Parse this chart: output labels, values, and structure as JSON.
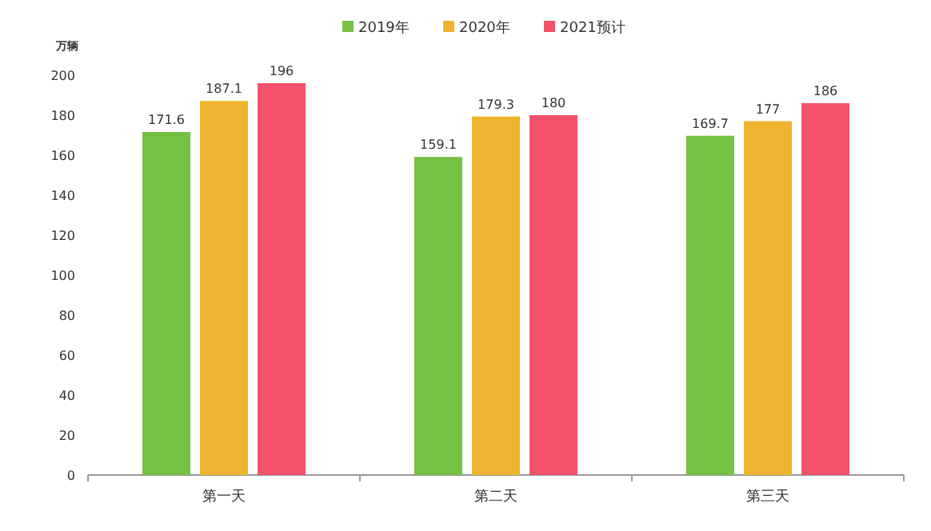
{
  "chart_data": {
    "type": "bar",
    "ylabel": "万辆",
    "categories": [
      "第一天",
      "第二天",
      "第三天"
    ],
    "series": [
      {
        "name": "2019年",
        "color": "#76c043",
        "values": [
          171.6,
          159.1,
          169.7
        ]
      },
      {
        "name": "2020年",
        "color": "#f0b330",
        "values": [
          187.1,
          179.3,
          177
        ]
      },
      {
        "name": "2021预计",
        "color": "#f2536a",
        "values": [
          196,
          180,
          186
        ]
      }
    ],
    "ylim": [
      0,
      200
    ],
    "yticks": [
      0,
      20,
      40,
      60,
      80,
      100,
      120,
      140,
      160,
      180,
      200
    ],
    "data_labels": true,
    "legend": "top"
  }
}
